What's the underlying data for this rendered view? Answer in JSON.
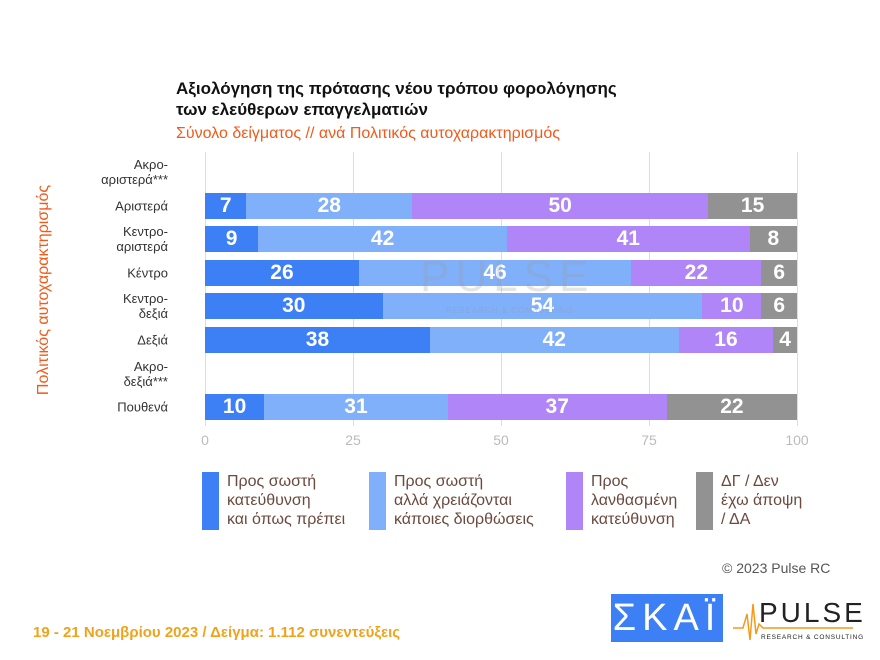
{
  "chart_data": {
    "type": "bar",
    "orientation": "horizontal",
    "stacked": true,
    "title": "Αξιολόγηση της πρότασης νέου τρόπου φορολόγησης των ελεύθερων επαγγελματιών",
    "subtitle": "Σύνολο δείγματος // ανά Πολιτικός αυτοχαρακτηρισμός",
    "ylabel": "Πολιτικός αυτοχαρακτηρισμός",
    "xlim": [
      0,
      100
    ],
    "xticks": [
      "0",
      "25",
      "50",
      "75",
      "100"
    ],
    "grid": true,
    "legend_position": "bottom",
    "categories": [
      "Ακρο-\nαριστερά***",
      "Αριστερά",
      "Κεντρο-\nαριστερά",
      "Κέντρο",
      "Κεντρο-\nδεξιά",
      "Δεξιά",
      "Ακρο-\nδεξιά***",
      "Πουθενά"
    ],
    "series": [
      {
        "name": "Προς σωστή κατεύθυνση και όπως πρέπει",
        "color": "#3d7ff5",
        "values": [
          null,
          7,
          9,
          26,
          30,
          38,
          null,
          10
        ]
      },
      {
        "name": "Προς σωστή αλλά χρειάζονται κάποιες διορθώσεις",
        "color": "#80b0fa",
        "values": [
          null,
          28,
          42,
          46,
          54,
          42,
          null,
          31
        ]
      },
      {
        "name": "Προς λανθασμένη κατεύθυνση",
        "color": "#b085f7",
        "values": [
          null,
          50,
          41,
          22,
          10,
          16,
          null,
          37
        ]
      },
      {
        "name": "ΔΓ / Δεν έχω άποψη / ΔΑ",
        "color": "#929292",
        "values": [
          null,
          15,
          8,
          6,
          6,
          4,
          null,
          22
        ]
      }
    ]
  },
  "copyright": "© 2023 Pulse RC",
  "footer": "19 - 21  Νοεμβρίου  2023  /  Δείγμα:  1.112 συνεντεύξεις",
  "logos": {
    "skai": "ΣΚΑΪ",
    "pulse": "PULSE",
    "pulse_sub": "RESEARCH & CONSULTING"
  }
}
